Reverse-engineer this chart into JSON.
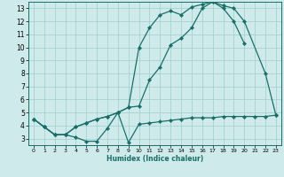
{
  "xlabel": "Humidex (Indice chaleur)",
  "bg_color": "#ceeaea",
  "grid_color": "#a0cccc",
  "line_color": "#1a6e6a",
  "xlim": [
    -0.5,
    23.5
  ],
  "ylim": [
    2.5,
    13.5
  ],
  "xticks": [
    0,
    1,
    2,
    3,
    4,
    5,
    6,
    7,
    8,
    9,
    10,
    11,
    12,
    13,
    14,
    15,
    16,
    17,
    18,
    19,
    20,
    21,
    22,
    23
  ],
  "yticks": [
    3,
    4,
    5,
    6,
    7,
    8,
    9,
    10,
    11,
    12,
    13
  ],
  "line1_x": [
    0,
    1,
    2,
    3,
    4,
    5,
    6,
    7,
    8,
    9,
    10,
    11,
    12,
    13,
    14,
    15,
    16,
    17,
    18,
    19,
    20,
    21,
    22,
    23
  ],
  "line1_y": [
    4.5,
    3.9,
    3.3,
    3.3,
    3.1,
    2.8,
    2.8,
    3.8,
    5.0,
    2.7,
    4.1,
    4.2,
    4.3,
    4.4,
    4.5,
    4.6,
    4.6,
    4.6,
    4.7,
    4.7,
    4.7,
    4.7,
    4.7,
    4.8
  ],
  "line2_x": [
    0,
    1,
    2,
    3,
    4,
    5,
    6,
    7,
    8,
    9,
    10,
    11,
    12,
    13,
    14,
    15,
    16,
    17,
    18,
    19,
    20
  ],
  "line2_y": [
    4.5,
    3.9,
    3.3,
    3.3,
    3.9,
    4.2,
    4.5,
    4.7,
    5.0,
    5.4,
    5.5,
    7.5,
    8.5,
    10.2,
    10.7,
    11.5,
    13.0,
    13.5,
    13.0,
    12.0,
    10.3
  ],
  "line3_x": [
    0,
    1,
    2,
    3,
    4,
    5,
    6,
    7,
    8,
    9,
    10,
    11,
    12,
    13,
    14,
    15,
    16,
    17,
    18,
    19,
    20,
    22,
    23
  ],
  "line3_y": [
    4.5,
    3.9,
    3.3,
    3.3,
    3.9,
    4.2,
    4.5,
    4.7,
    5.0,
    5.4,
    10.0,
    11.5,
    12.5,
    12.8,
    12.5,
    13.1,
    13.3,
    13.5,
    13.2,
    13.0,
    12.0,
    8.0,
    4.8
  ]
}
